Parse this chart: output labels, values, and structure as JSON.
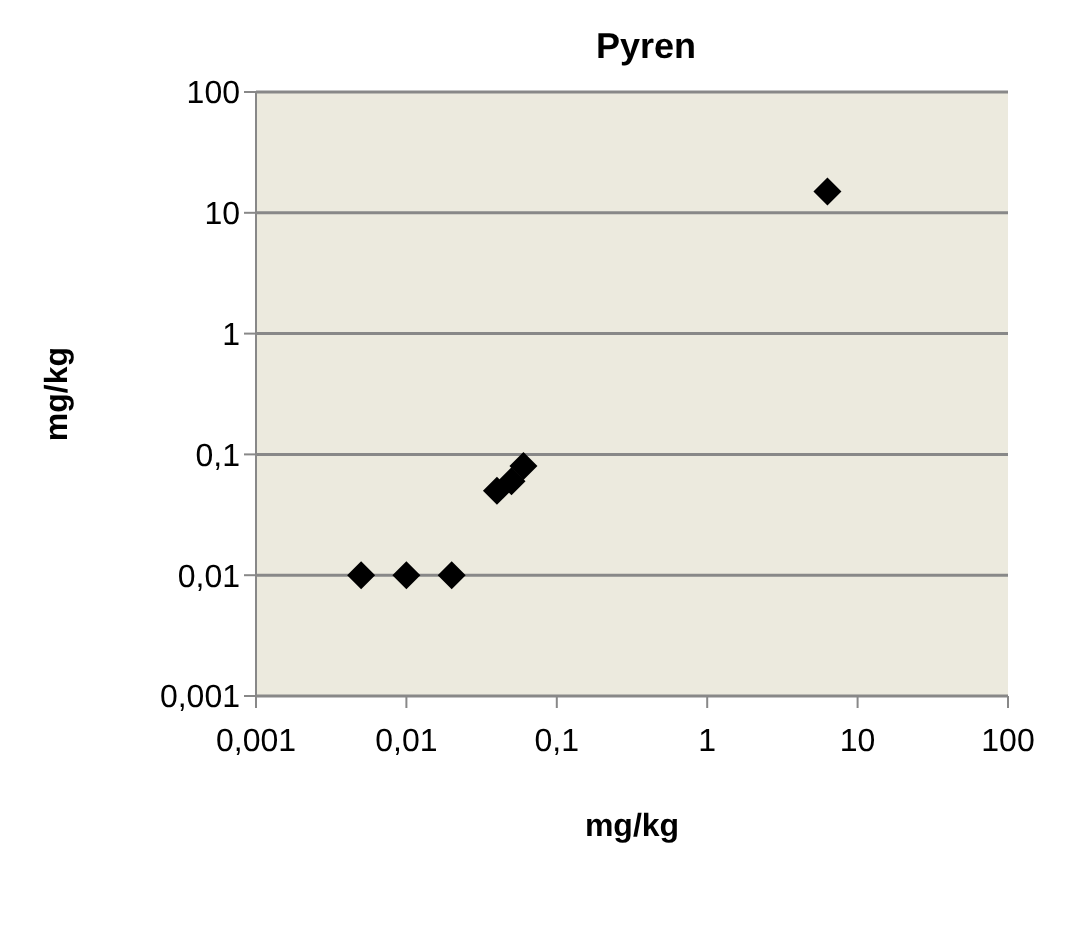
{
  "chart_data": {
    "type": "scatter",
    "title": "Pyren",
    "xlabel": "mg/kg",
    "ylabel": "mg/kg",
    "log": "xy",
    "grid": "y",
    "marker": "diamond",
    "xlim": [
      0.001,
      100
    ],
    "ylim": [
      0.001,
      100
    ],
    "xticks": [
      {
        "value": 0.001,
        "label": "0,001"
      },
      {
        "value": 0.01,
        "label": "0,01"
      },
      {
        "value": 0.1,
        "label": "0,1"
      },
      1,
      10,
      100
    ],
    "yticks": [
      {
        "value": 0.001,
        "label": "0,001"
      },
      {
        "value": 0.01,
        "label": "0,01"
      },
      {
        "value": 0.1,
        "label": "0,1"
      },
      1,
      10,
      100
    ],
    "series": [
      {
        "color": "#000000",
        "x": [
          0.005,
          0.01,
          0.02,
          0.04,
          0.05,
          0.06,
          6.3
        ],
        "values": [
          0.01,
          0.01,
          0.01,
          0.05,
          0.06,
          0.08,
          15
        ]
      }
    ]
  }
}
